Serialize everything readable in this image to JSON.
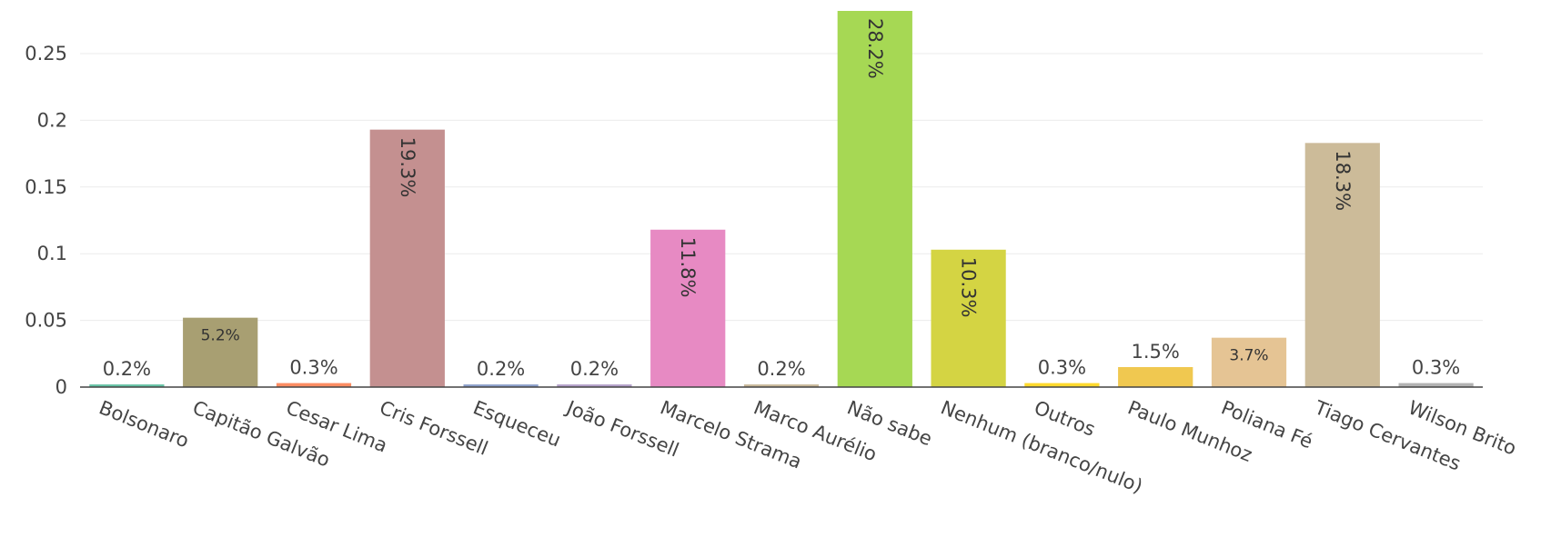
{
  "chart_data": {
    "type": "bar",
    "categories": [
      "Bolsonaro",
      "Capitão Galvão",
      "Cesar Lima",
      "Cris Forssell",
      "Esqueceu",
      "João Forssell",
      "Marcelo Strama",
      "Marco Aurélio",
      "Não sabe",
      "Nenhum (branco/nulo)",
      "Outros",
      "Paulo Munhoz",
      "Poliana Fé",
      "Tiago Cervantes",
      "Wilson Brito"
    ],
    "values": [
      0.002,
      0.052,
      0.003,
      0.193,
      0.002,
      0.002,
      0.118,
      0.002,
      0.282,
      0.103,
      0.003,
      0.015,
      0.037,
      0.183,
      0.003
    ],
    "data_labels": [
      "0.2%",
      "5.2%",
      "0.3%",
      "19.3%",
      "0.2%",
      "0.2%",
      "11.8%",
      "0.2%",
      "28.2%",
      "10.3%",
      "0.3%",
      "1.5%",
      "3.7%",
      "18.3%",
      "0.3%"
    ],
    "colors": [
      "#66c2a5",
      "#a89f72",
      "#fc8d62",
      "#c49090",
      "#8da0cb",
      "#b3a0c9",
      "#e78ac3",
      "#c8b89a",
      "#a6d854",
      "#d4d443",
      "#ffd92f",
      "#f0c850",
      "#e5c494",
      "#ccbb99",
      "#b3b3b3"
    ],
    "yticks": [
      0,
      0.05,
      0.1,
      0.15,
      0.2,
      0.25
    ],
    "ytick_labels": [
      "0",
      "0.05",
      "0.1",
      "0.15",
      "0.2",
      "0.25"
    ],
    "ylim": [
      0,
      0.282
    ],
    "title": "",
    "xlabel": "",
    "ylabel": "",
    "grid": true
  }
}
